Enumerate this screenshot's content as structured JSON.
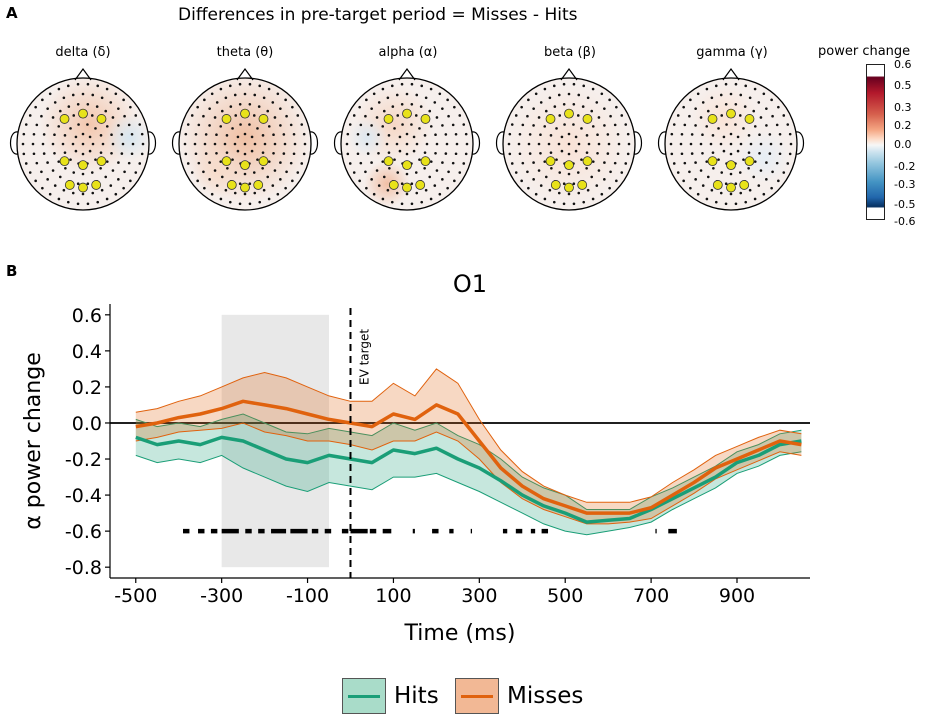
{
  "panel_a": {
    "letter": "A",
    "title": "Differences in pre-target period = Misses - Hits",
    "bands": [
      "delta (δ)",
      "theta (θ)",
      "alpha (α)",
      "beta (β)",
      "gamma (γ)"
    ],
    "colorbar": {
      "title": "power change",
      "ticks": [
        "0.6",
        "0.5",
        "0.3",
        "0.2",
        "0.0",
        "-0.2",
        "-0.3",
        "-0.5",
        "-0.6"
      ],
      "positive_color": "#b2182b",
      "negative_color": "#2166ac"
    }
  },
  "panel_b": {
    "letter": "B",
    "annotation": "EV target",
    "legend": [
      {
        "label": "Hits",
        "color": "#1a9e77"
      },
      {
        "label": "Misses",
        "color": "#e0620e"
      }
    ]
  },
  "chart_data": {
    "type": "line",
    "title": "O1",
    "xlabel": "Time (ms)",
    "ylabel": "α power change",
    "xlim": [
      -560,
      1070
    ],
    "ylim": [
      -0.86,
      0.66
    ],
    "x_ticks": [
      -500,
      -300,
      -100,
      100,
      300,
      500,
      700,
      900
    ],
    "x_tick_labels": [
      "-500",
      "-300",
      "-100",
      "100",
      "300",
      "500",
      "700",
      "900"
    ],
    "y_ticks": [
      0.6,
      0.4,
      0.2,
      0.0,
      -0.2,
      -0.4,
      -0.6,
      -0.8
    ],
    "y_tick_labels": [
      "0.6",
      "0.4",
      "0.2",
      "0.0",
      "-0.2",
      "-0.4",
      "-0.6",
      "-0.8"
    ],
    "shaded_window": [
      -300,
      -50
    ],
    "event_line_x": 0,
    "significance_y": -0.6,
    "significance_segments": [
      [
        -390,
        -375
      ],
      [
        -355,
        -340
      ],
      [
        -325,
        -310
      ],
      [
        -300,
        -260
      ],
      [
        -245,
        -230
      ],
      [
        -215,
        -200
      ],
      [
        -185,
        -150
      ],
      [
        -140,
        -100
      ],
      [
        -90,
        -75
      ],
      [
        -60,
        -45
      ],
      [
        -20,
        -5
      ],
      [
        0,
        40
      ],
      [
        45,
        60
      ],
      [
        75,
        95
      ],
      [
        145,
        150
      ],
      [
        190,
        205
      ],
      [
        230,
        240
      ],
      [
        280,
        283
      ],
      [
        355,
        365
      ],
      [
        385,
        400
      ],
      [
        420,
        430
      ],
      [
        445,
        460
      ],
      [
        710,
        713
      ],
      [
        740,
        760
      ]
    ],
    "series": [
      {
        "name": "Hits",
        "color": "#1a9e77",
        "x": [
          -500,
          -450,
          -400,
          -350,
          -300,
          -250,
          -200,
          -150,
          -100,
          -50,
          0,
          50,
          100,
          150,
          200,
          250,
          300,
          350,
          400,
          450,
          500,
          550,
          600,
          650,
          700,
          750,
          800,
          850,
          900,
          950,
          1000,
          1050
        ],
        "y": [
          -0.08,
          -0.12,
          -0.1,
          -0.12,
          -0.08,
          -0.1,
          -0.15,
          -0.2,
          -0.22,
          -0.18,
          -0.2,
          -0.22,
          -0.15,
          -0.17,
          -0.14,
          -0.2,
          -0.25,
          -0.32,
          -0.4,
          -0.46,
          -0.5,
          -0.55,
          -0.54,
          -0.53,
          -0.48,
          -0.42,
          -0.36,
          -0.3,
          -0.22,
          -0.18,
          -0.12,
          -0.1
        ],
        "lower": [
          -0.18,
          -0.22,
          -0.2,
          -0.22,
          -0.18,
          -0.25,
          -0.3,
          -0.35,
          -0.38,
          -0.33,
          -0.35,
          -0.37,
          -0.3,
          -0.3,
          -0.28,
          -0.33,
          -0.38,
          -0.44,
          -0.5,
          -0.56,
          -0.6,
          -0.62,
          -0.6,
          -0.58,
          -0.55,
          -0.48,
          -0.42,
          -0.36,
          -0.28,
          -0.24,
          -0.18,
          -0.16
        ],
        "upper": [
          0.02,
          -0.02,
          0.0,
          -0.02,
          0.02,
          0.05,
          0.0,
          -0.05,
          -0.06,
          -0.03,
          -0.05,
          -0.07,
          0.0,
          -0.04,
          0.0,
          -0.07,
          -0.12,
          -0.2,
          -0.3,
          -0.36,
          -0.4,
          -0.48,
          -0.48,
          -0.48,
          -0.41,
          -0.36,
          -0.3,
          -0.24,
          -0.16,
          -0.12,
          -0.06,
          -0.04
        ]
      },
      {
        "name": "Misses",
        "color": "#e0620e",
        "x": [
          -500,
          -450,
          -400,
          -350,
          -300,
          -250,
          -200,
          -150,
          -100,
          -50,
          0,
          50,
          100,
          150,
          200,
          250,
          300,
          350,
          400,
          450,
          500,
          550,
          600,
          650,
          700,
          750,
          800,
          850,
          900,
          950,
          1000,
          1050
        ],
        "y": [
          -0.02,
          0.0,
          0.03,
          0.05,
          0.08,
          0.12,
          0.1,
          0.08,
          0.05,
          0.02,
          0.0,
          -0.02,
          0.05,
          0.02,
          0.1,
          0.05,
          -0.1,
          -0.25,
          -0.35,
          -0.42,
          -0.46,
          -0.5,
          -0.5,
          -0.5,
          -0.47,
          -0.4,
          -0.33,
          -0.25,
          -0.2,
          -0.15,
          -0.1,
          -0.12
        ],
        "lower": [
          -0.1,
          -0.08,
          -0.05,
          -0.04,
          -0.03,
          0.0,
          -0.05,
          -0.07,
          -0.1,
          -0.1,
          -0.12,
          -0.15,
          -0.1,
          -0.1,
          -0.05,
          -0.1,
          -0.2,
          -0.33,
          -0.42,
          -0.48,
          -0.52,
          -0.56,
          -0.56,
          -0.55,
          -0.53,
          -0.46,
          -0.39,
          -0.31,
          -0.26,
          -0.21,
          -0.16,
          -0.18
        ],
        "upper": [
          0.06,
          0.08,
          0.12,
          0.15,
          0.2,
          0.25,
          0.28,
          0.25,
          0.2,
          0.15,
          0.12,
          0.12,
          0.22,
          0.15,
          0.3,
          0.22,
          0.02,
          -0.15,
          -0.27,
          -0.35,
          -0.4,
          -0.44,
          -0.44,
          -0.44,
          -0.41,
          -0.33,
          -0.26,
          -0.18,
          -0.13,
          -0.08,
          -0.04,
          -0.06
        ]
      }
    ]
  }
}
